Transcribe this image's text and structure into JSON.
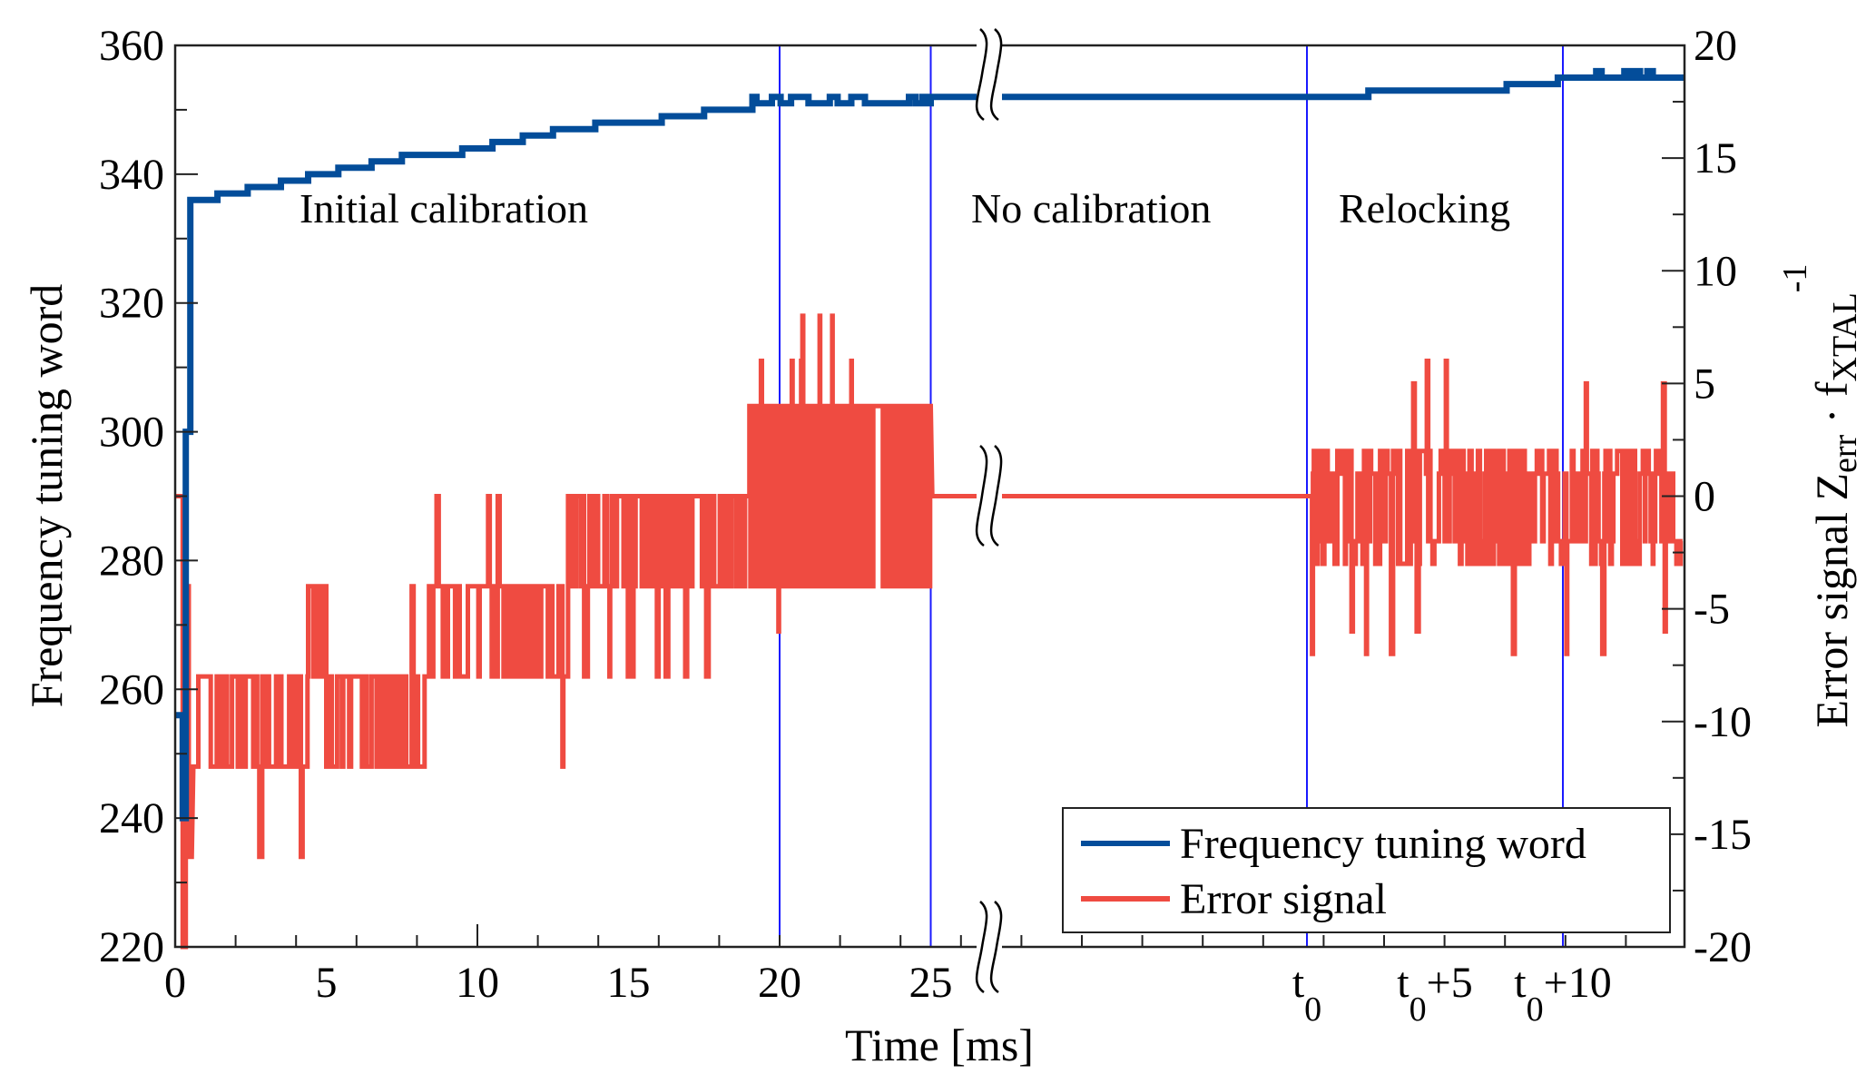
{
  "chart_data": {
    "type": "line",
    "title": "",
    "xlabel": "Time [ms]",
    "ylabel_left": "Frequency tuning word",
    "ylabel_right": {
      "prefix": "Error signal Z",
      "sub1": "err",
      "middle": " · f",
      "sub2": "XTAL",
      "sup": "-1"
    },
    "ylim_left": [
      220,
      360
    ],
    "ylim_right": [
      -20,
      20
    ],
    "yticks_left": [
      220,
      240,
      260,
      280,
      300,
      320,
      340,
      360
    ],
    "yticks_right": [
      -20,
      -15,
      -10,
      -5,
      0,
      5,
      10,
      15,
      20
    ],
    "x_segments": [
      {
        "name": "calibration",
        "range_ms": [
          0,
          26.8
        ],
        "tick_labels": [
          {
            "t": 0,
            "label": "0"
          },
          {
            "t": 5,
            "label": "5"
          },
          {
            "t": 10,
            "label": "10"
          },
          {
            "t": 15,
            "label": "15"
          },
          {
            "t": 20,
            "label": "20"
          },
          {
            "t": 25,
            "label": "25"
          }
        ]
      },
      {
        "name": "relocking",
        "range_ms_after_t0": [
          -10.5,
          12.5
        ],
        "tick_labels": [
          {
            "t": 0,
            "base": "t",
            "sub": "0",
            "suffix": ""
          },
          {
            "t": 5,
            "base": "t",
            "sub": "0",
            "suffix": "+5"
          },
          {
            "t": 10,
            "base": "t",
            "sub": "0",
            "suffix": "+10"
          }
        ]
      }
    ],
    "axis_break": "between 26.8 ms and t0-10.5 ms",
    "vertical_markers": [
      {
        "segment": "calibration",
        "t": 20
      },
      {
        "segment": "calibration",
        "t": 25
      },
      {
        "segment": "relocking",
        "t": 0
      },
      {
        "segment": "relocking",
        "t": 10
      }
    ],
    "regions": [
      {
        "label": "Initial calibration",
        "segment": "calibration"
      },
      {
        "label": "No calibration",
        "segment": "between"
      },
      {
        "label": "Relocking",
        "segment": "relocking"
      }
    ],
    "legend": {
      "placement": "bottom-right",
      "entries": [
        {
          "name": "Frequency tuning word",
          "color": "#034d9a"
        },
        {
          "name": "Error signal",
          "color": "#ef4b41"
        }
      ]
    },
    "series": [
      {
        "name": "Frequency tuning word",
        "axis": "left",
        "color": "#034d9a",
        "calibration_steps": [
          [
            0,
            256
          ],
          [
            0.25,
            240
          ],
          [
            0.35,
            300
          ],
          [
            0.5,
            336
          ],
          [
            1.4,
            337
          ],
          [
            2.4,
            338
          ],
          [
            3.5,
            339
          ],
          [
            4.4,
            340
          ],
          [
            5.4,
            341
          ],
          [
            6.5,
            342
          ],
          [
            7.5,
            343
          ],
          [
            9.5,
            344
          ],
          [
            10.5,
            345
          ],
          [
            11.5,
            346
          ],
          [
            12.5,
            347
          ],
          [
            13.9,
            348
          ],
          [
            16.1,
            349
          ],
          [
            17.5,
            350
          ],
          [
            19.1,
            351
          ]
        ],
        "calibration_wobble": {
          "range_ms": [
            19.1,
            25
          ],
          "levels": [
            351,
            352
          ]
        },
        "hold_value": 352,
        "relocking_steps": [
          [
            -10.5,
            352
          ],
          [
            2.4,
            353
          ],
          [
            7.8,
            354
          ],
          [
            9.8,
            355
          ]
        ],
        "relocking_bumps": [
          [
            11.3,
            356
          ],
          [
            12.4,
            356
          ],
          [
            12.8,
            356
          ],
          [
            13.3,
            356
          ]
        ]
      },
      {
        "name": "Error signal",
        "axis": "right",
        "color": "#ef4b41",
        "calibration_levels": [
          -20,
          -16,
          -12,
          -8,
          -4,
          0,
          4,
          8
        ],
        "hold_value": 0,
        "relocking_levels": [
          -7,
          -6,
          -3,
          -2,
          0,
          1,
          2,
          5,
          6
        ]
      }
    ]
  }
}
